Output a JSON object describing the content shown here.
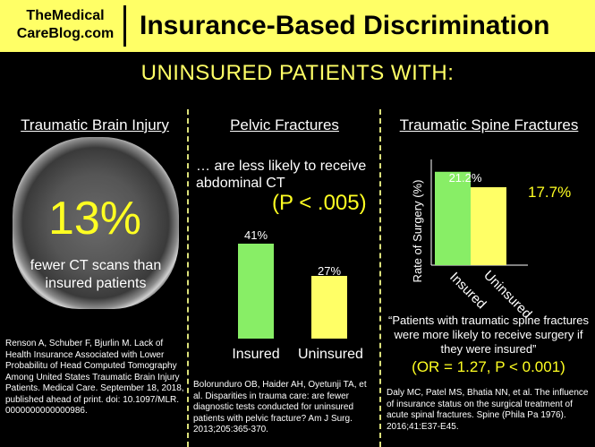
{
  "header": {
    "logo_line1": "TheMedical",
    "logo_line2": "CareBlog.com",
    "title": "Insurance-Based Discrimination"
  },
  "subtitle": "UNINSURED PATIENTS WITH:",
  "panels": {
    "brain": {
      "title": "Traumatic Brain Injury",
      "percent": "13%",
      "description": "fewer CT scans than insured patients",
      "citation": "Renson A, Schuber F, Bjurlin M. Lack of Health Insurance Associated with Lower Probabilitu of Head Computed Tomography Among United States Traumatic Brain Injury Patients. Medical Care. September 18, 2018, published ahead of print. doi: 10.1097/MLR. 0000000000000986."
    },
    "pelvic": {
      "title": "Pelvic Fractures",
      "intro": "… are less likely to receive abdominal CT",
      "p_value": "(P < .005)",
      "citation": "Bolorunduro OB, Haider AH, Oyetunji TA, et al. Disparities in trauma care: are fewer diagnostic tests conducted for uninsured patients with pelvic fracture? Am J Surg. 2013;205:365-370."
    },
    "spine": {
      "title": "Traumatic Spine Fractures",
      "quote": "“Patients with traumatic spine fractures were more likely to receive surgery if they were insured”",
      "or_value": "(OR = 1.27, P < 0.001)",
      "citation": "Daly MC, Patel MS, Bhatia NN, et al. The influence of insurance status on the surgical treatment of acute spinal fractures. Spine (Phila Pa 1976). 2016;41:E37-E45."
    }
  },
  "chart_data": [
    {
      "type": "bar",
      "categories": [
        "Insured",
        "Uninsured"
      ],
      "values": [
        41,
        27
      ],
      "data_labels": [
        "41%",
        "27%"
      ],
      "colors": [
        "#88ee66",
        "#ffff66"
      ],
      "ylim": [
        0,
        41
      ]
    },
    {
      "type": "bar",
      "categories": [
        "Insured",
        "Uninsured"
      ],
      "values": [
        21.2,
        17.7
      ],
      "data_labels": [
        "21.2%",
        "17.7%"
      ],
      "ylabel": "Rate of Surgery (%)",
      "colors": [
        "#88ee66",
        "#ffff66"
      ],
      "ylim": [
        0,
        24
      ]
    }
  ]
}
